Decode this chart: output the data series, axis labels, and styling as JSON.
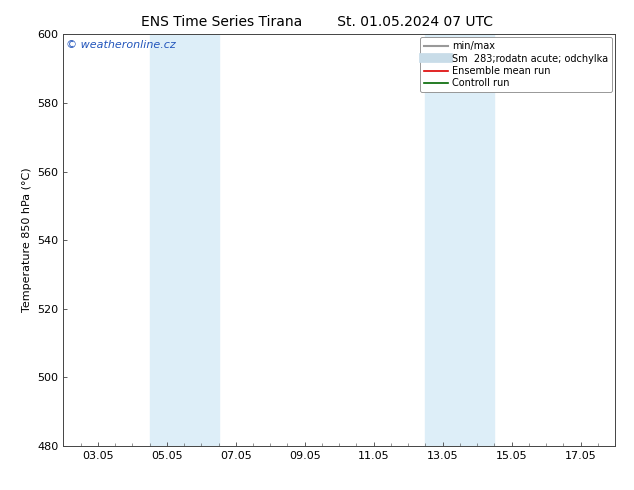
{
  "title_left": "ENS Time Series Tirana",
  "title_right": "St. 01.05.2024 07 UTC",
  "ylabel": "Temperature 850 hPa (°C)",
  "ylim": [
    480,
    600
  ],
  "yticks": [
    480,
    500,
    520,
    540,
    560,
    580,
    600
  ],
  "xtick_labels": [
    "03.05",
    "05.05",
    "07.05",
    "09.05",
    "11.05",
    "13.05",
    "15.05",
    "17.05"
  ],
  "xtick_positions": [
    1,
    3,
    5,
    7,
    9,
    11,
    13,
    15
  ],
  "xlim": [
    0,
    16
  ],
  "background_color": "#ffffff",
  "shade_bands": [
    {
      "x_start": 2.5,
      "x_end": 4.5
    },
    {
      "x_start": 10.5,
      "x_end": 12.5
    }
  ],
  "shade_color": "#ddeef8",
  "watermark_text": "© weatheronline.cz",
  "watermark_color": "#2255bb",
  "legend_entries": [
    {
      "label": "min/max",
      "color": "#999999",
      "lw": 1.5,
      "ls": "-"
    },
    {
      "label": "Sm  283;rodatn acute; odchylka",
      "color": "#c8dce8",
      "lw": 7,
      "ls": "-"
    },
    {
      "label": "Ensemble mean run",
      "color": "#dd0000",
      "lw": 1.2,
      "ls": "-"
    },
    {
      "label": "Controll run",
      "color": "#006600",
      "lw": 1.2,
      "ls": "-"
    }
  ],
  "spine_color": "#444444",
  "tick_color": "#444444",
  "grid_color": "#dddddd",
  "font_size": 8,
  "title_font_size": 10,
  "ylabel_font_size": 8,
  "watermark_font_size": 8,
  "legend_font_size": 7
}
